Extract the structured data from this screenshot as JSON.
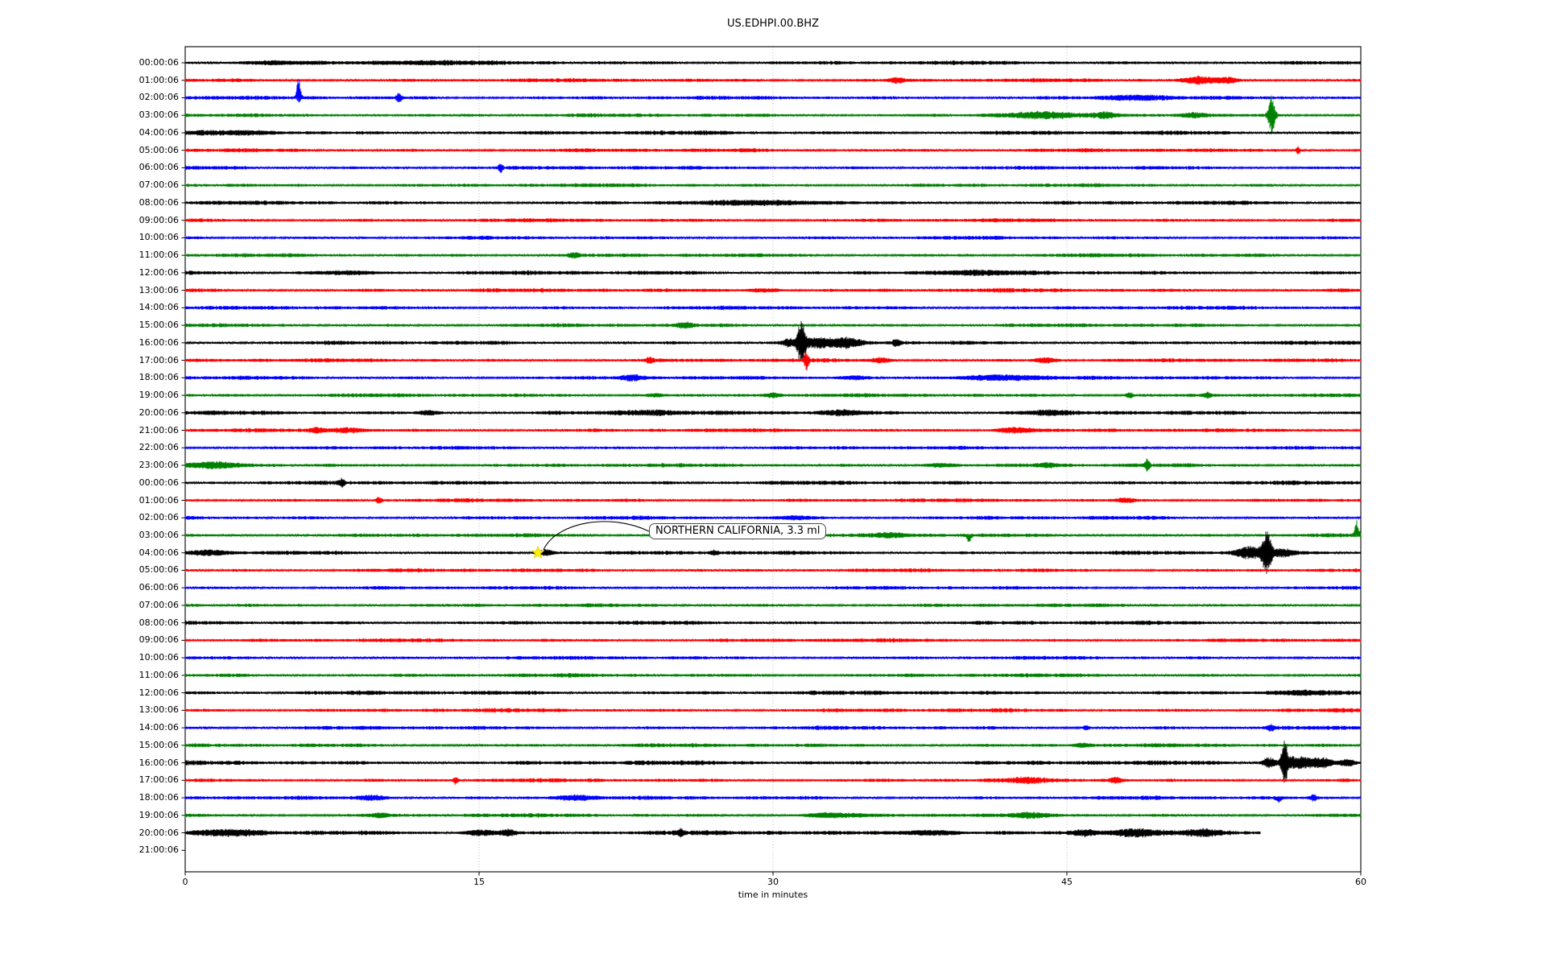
{
  "chart_data": {
    "type": "line",
    "subtype": "helicorder-seismogram-drumplot",
    "title": "US.EDHPI.00.BHZ",
    "xlabel": "time in minutes",
    "xlim": [
      0,
      60
    ],
    "x_ticks": [
      "0",
      "15",
      "30",
      "45",
      "60"
    ],
    "x_tick_values": [
      0,
      15,
      30,
      45,
      60
    ],
    "grid": {
      "vertical_dotted_minutes": [
        15,
        30,
        45
      ],
      "grid_color": "#aaaaaa"
    },
    "trace_color_cycle": [
      "#000000",
      "#ff0000",
      "#0000ff",
      "#008000"
    ],
    "minutes_per_row": 60,
    "annotation": {
      "text": "NORTHERN CALIFORNIA, 3.3 ml",
      "region": "NORTHERN CALIFORNIA",
      "magnitude": "3.3 ml",
      "row_index": 28,
      "row_label": "04:00:06",
      "time_minutes": 18,
      "marker": "star",
      "marker_color": "#ffee00"
    },
    "rows": [
      {
        "label": "00:00:06",
        "color": "#000000",
        "noise_amp": 1.9,
        "events": [
          {
            "t": 4.5,
            "a": 2,
            "w": 2
          },
          {
            "t": 11.5,
            "a": 1.5,
            "w": 3
          }
        ]
      },
      {
        "label": "01:00:06",
        "color": "#ff0000",
        "noise_amp": 1.8,
        "events": [
          {
            "t": 36.3,
            "a": 3,
            "w": 0.4
          },
          {
            "t": 51.8,
            "a": 4,
            "w": 0.9
          },
          {
            "t": 53.2,
            "a": 3.5,
            "w": 0.5
          }
        ]
      },
      {
        "label": "02:00:06",
        "color": "#0000ff",
        "noise_amp": 1.8,
        "events": [
          {
            "t": 5.8,
            "a": 28,
            "w": 0.12,
            "d": 1
          },
          {
            "t": 5.8,
            "a": 5,
            "w": 0.1,
            "d": -1
          },
          {
            "t": 10.9,
            "a": 5,
            "w": 0.15
          },
          {
            "t": 48.5,
            "a": 3,
            "w": 1.5
          }
        ]
      },
      {
        "label": "03:00:06",
        "color": "#008000",
        "noise_amp": 1.8,
        "events": [
          {
            "t": 55.45,
            "a": 24,
            "w": 0.18
          },
          {
            "t": 43.5,
            "a": 3.5,
            "w": 2
          },
          {
            "t": 51.5,
            "a": 3,
            "w": 0.7
          },
          {
            "t": 47,
            "a": 2.5,
            "w": 0.5
          }
        ]
      },
      {
        "label": "04:00:06",
        "color": "#000000",
        "noise_amp": 2.0,
        "events": [
          {
            "t": 3,
            "a": 1.5,
            "w": 2
          }
        ]
      },
      {
        "label": "05:00:06",
        "color": "#ff0000",
        "noise_amp": 1.8,
        "events": [
          {
            "t": 56.8,
            "a": 5,
            "w": 0.12
          }
        ]
      },
      {
        "label": "06:00:06",
        "color": "#0000ff",
        "noise_amp": 1.8,
        "events": [
          {
            "t": 16.1,
            "a": 5,
            "w": 0.12
          }
        ]
      },
      {
        "label": "07:00:06",
        "color": "#008000",
        "noise_amp": 1.8,
        "events": []
      },
      {
        "label": "08:00:06",
        "color": "#000000",
        "noise_amp": 1.9,
        "events": [
          {
            "t": 30,
            "a": 1.5,
            "w": 4
          }
        ]
      },
      {
        "label": "09:00:06",
        "color": "#ff0000",
        "noise_amp": 1.8,
        "events": []
      },
      {
        "label": "10:00:06",
        "color": "#0000ff",
        "noise_amp": 1.7,
        "events": []
      },
      {
        "label": "11:00:06",
        "color": "#008000",
        "noise_amp": 1.8,
        "events": [
          {
            "t": 19.8,
            "a": 2.5,
            "w": 0.3
          }
        ]
      },
      {
        "label": "12:00:06",
        "color": "#000000",
        "noise_amp": 2.0,
        "events": [
          {
            "t": 8,
            "a": 1.5,
            "w": 2
          },
          {
            "t": 40,
            "a": 1.5,
            "w": 3
          }
        ]
      },
      {
        "label": "13:00:06",
        "color": "#ff0000",
        "noise_amp": 1.9,
        "events": [
          {
            "t": 29.5,
            "a": 2,
            "w": 1
          }
        ]
      },
      {
        "label": "14:00:06",
        "color": "#0000ff",
        "noise_amp": 1.8,
        "events": []
      },
      {
        "label": "15:00:06",
        "color": "#008000",
        "noise_amp": 1.8,
        "events": [
          {
            "t": 25.5,
            "a": 2.5,
            "w": 0.4
          }
        ]
      },
      {
        "label": "16:00:06",
        "color": "#000000",
        "noise_amp": 1.9,
        "events": [
          {
            "t": 31.45,
            "a": 27,
            "w": 0.2
          },
          {
            "t": 32.3,
            "a": 6,
            "w": 0.8
          },
          {
            "t": 33.8,
            "a": 5,
            "w": 0.8
          },
          {
            "t": 36.3,
            "a": 4,
            "w": 0.2
          },
          {
            "t": 30.8,
            "a": 4,
            "w": 0.3
          }
        ]
      },
      {
        "label": "17:00:06",
        "color": "#ff0000",
        "noise_amp": 1.8,
        "events": [
          {
            "t": 31.7,
            "a": 12,
            "w": 0.12
          },
          {
            "t": 23.7,
            "a": 3.5,
            "w": 0.2
          },
          {
            "t": 43.9,
            "a": 3,
            "w": 0.6
          },
          {
            "t": 35.5,
            "a": 2.5,
            "w": 0.5
          }
        ]
      },
      {
        "label": "18:00:06",
        "color": "#0000ff",
        "noise_amp": 1.8,
        "events": [
          {
            "t": 22.8,
            "a": 3,
            "w": 0.6
          },
          {
            "t": 41.5,
            "a": 3.5,
            "w": 2
          },
          {
            "t": 34,
            "a": 2.5,
            "w": 0.8
          }
        ]
      },
      {
        "label": "19:00:06",
        "color": "#008000",
        "noise_amp": 1.8,
        "events": [
          {
            "t": 30,
            "a": 3,
            "w": 0.4
          },
          {
            "t": 48.2,
            "a": 3.5,
            "w": 0.2
          },
          {
            "t": 52.2,
            "a": 3,
            "w": 0.2
          },
          {
            "t": 24,
            "a": 2,
            "w": 0.5
          }
        ]
      },
      {
        "label": "20:00:06",
        "color": "#000000",
        "noise_amp": 2.0,
        "events": [
          {
            "t": 12.4,
            "a": 2.5,
            "w": 0.5
          },
          {
            "t": 23.5,
            "a": 2.5,
            "w": 1.5
          },
          {
            "t": 33.5,
            "a": 3,
            "w": 1.5
          },
          {
            "t": 44,
            "a": 2,
            "w": 1
          }
        ]
      },
      {
        "label": "21:00:06",
        "color": "#ff0000",
        "noise_amp": 1.8,
        "events": [
          {
            "t": 8.2,
            "a": 3,
            "w": 0.8
          },
          {
            "t": 42.4,
            "a": 3.5,
            "w": 1
          },
          {
            "t": 6.7,
            "a": 2.5,
            "w": 0.4
          }
        ]
      },
      {
        "label": "22:00:06",
        "color": "#0000ff",
        "noise_amp": 1.7,
        "events": []
      },
      {
        "label": "23:00:06",
        "color": "#008000",
        "noise_amp": 1.8,
        "events": [
          {
            "t": 1.5,
            "a": 3,
            "w": 1.5
          },
          {
            "t": 38.5,
            "a": 2.5,
            "w": 0.8
          },
          {
            "t": 49.1,
            "a": 8,
            "w": 0.12
          },
          {
            "t": 44,
            "a": 2.5,
            "w": 0.5
          }
        ]
      },
      {
        "label": "00:00:06",
        "color": "#000000",
        "noise_amp": 1.9,
        "events": [
          {
            "t": 8,
            "a": 4,
            "w": 0.15
          }
        ]
      },
      {
        "label": "01:00:06",
        "color": "#ff0000",
        "noise_amp": 1.8,
        "events": [
          {
            "t": 9.9,
            "a": 4,
            "w": 0.15
          },
          {
            "t": 48,
            "a": 2.5,
            "w": 0.5
          }
        ]
      },
      {
        "label": "02:00:06",
        "color": "#0000ff",
        "noise_amp": 1.8,
        "events": [
          {
            "t": 31,
            "a": 2,
            "w": 1
          }
        ]
      },
      {
        "label": "03:00:06",
        "color": "#008000",
        "noise_amp": 1.8,
        "events": [
          {
            "t": 29,
            "a": 5,
            "w": 0.4,
            "d": -1
          },
          {
            "t": 30.1,
            "a": 4,
            "w": 0.2,
            "d": -1
          },
          {
            "t": 31.5,
            "a": 3,
            "w": 0.3
          },
          {
            "t": 40,
            "a": 8,
            "w": 0.12,
            "d": -1
          },
          {
            "t": 59.8,
            "a": 18,
            "w": 0.12,
            "d": 1
          },
          {
            "t": 36,
            "a": 2.5,
            "w": 0.8
          }
        ]
      },
      {
        "label": "04:00:06",
        "color": "#000000",
        "noise_amp": 1.9,
        "events": [
          {
            "t": 1.2,
            "a": 2.5,
            "w": 1
          },
          {
            "t": 18.4,
            "a": 4,
            "w": 0.4
          },
          {
            "t": 27,
            "a": 2.5,
            "w": 0.2
          },
          {
            "t": 55.2,
            "a": 26,
            "w": 0.25
          },
          {
            "t": 54.3,
            "a": 7,
            "w": 0.7
          },
          {
            "t": 56,
            "a": 5,
            "w": 0.5
          }
        ]
      },
      {
        "label": "05:00:06",
        "color": "#ff0000",
        "noise_amp": 1.8,
        "events": []
      },
      {
        "label": "06:00:06",
        "color": "#0000ff",
        "noise_amp": 1.7,
        "events": []
      },
      {
        "label": "07:00:06",
        "color": "#008000",
        "noise_amp": 1.7,
        "events": []
      },
      {
        "label": "08:00:06",
        "color": "#000000",
        "noise_amp": 1.9,
        "events": []
      },
      {
        "label": "09:00:06",
        "color": "#ff0000",
        "noise_amp": 1.8,
        "events": []
      },
      {
        "label": "10:00:06",
        "color": "#0000ff",
        "noise_amp": 1.7,
        "events": []
      },
      {
        "label": "11:00:06",
        "color": "#008000",
        "noise_amp": 1.8,
        "events": []
      },
      {
        "label": "12:00:06",
        "color": "#000000",
        "noise_amp": 2.0,
        "events": [
          {
            "t": 57,
            "a": 2,
            "w": 1
          }
        ]
      },
      {
        "label": "13:00:06",
        "color": "#ff0000",
        "noise_amp": 1.9,
        "events": []
      },
      {
        "label": "14:00:06",
        "color": "#0000ff",
        "noise_amp": 1.8,
        "events": [
          {
            "t": 55.4,
            "a": 3.5,
            "w": 0.2
          },
          {
            "t": 46,
            "a": 2.5,
            "w": 0.2
          }
        ]
      },
      {
        "label": "15:00:06",
        "color": "#008000",
        "noise_amp": 1.8,
        "events": [
          {
            "t": 45.8,
            "a": 2.5,
            "w": 0.4
          }
        ]
      },
      {
        "label": "16:00:06",
        "color": "#000000",
        "noise_amp": 2.1,
        "events": [
          {
            "t": 56.1,
            "a": 28,
            "w": 0.15
          },
          {
            "t": 56.7,
            "a": 8,
            "w": 0.8
          },
          {
            "t": 58,
            "a": 5,
            "w": 0.6
          },
          {
            "t": 55.3,
            "a": 6,
            "w": 0.3
          },
          {
            "t": 59.3,
            "a": 4,
            "w": 0.4
          }
        ]
      },
      {
        "label": "17:00:06",
        "color": "#ff0000",
        "noise_amp": 1.8,
        "events": [
          {
            "t": 13.8,
            "a": 5,
            "w": 0.12
          },
          {
            "t": 43,
            "a": 3,
            "w": 0.8
          },
          {
            "t": 47.5,
            "a": 3,
            "w": 0.4
          }
        ]
      },
      {
        "label": "18:00:06",
        "color": "#0000ff",
        "noise_amp": 1.8,
        "events": [
          {
            "t": 9.6,
            "a": 3,
            "w": 0.8
          },
          {
            "t": 19.8,
            "a": 3,
            "w": 1.2
          },
          {
            "t": 55.8,
            "a": 5,
            "w": 0.15,
            "d": -1
          },
          {
            "t": 57.6,
            "a": 4,
            "w": 0.15
          }
        ]
      },
      {
        "label": "19:00:06",
        "color": "#008000",
        "noise_amp": 1.8,
        "events": [
          {
            "t": 33,
            "a": 2.5,
            "w": 1.5
          },
          {
            "t": 43,
            "a": 2.5,
            "w": 0.8
          },
          {
            "t": 10,
            "a": 2.5,
            "w": 0.5
          }
        ]
      },
      {
        "label": "20:00:06",
        "color": "#000000",
        "noise_amp": 2.2,
        "end": 54.9,
        "events": [
          {
            "t": 2.5,
            "a": 3,
            "w": 1.5
          },
          {
            "t": 15,
            "a": 3,
            "w": 0.8
          },
          {
            "t": 16.5,
            "a": 4,
            "w": 0.4
          },
          {
            "t": 25.3,
            "a": 3.5,
            "w": 0.2
          },
          {
            "t": 38,
            "a": 3,
            "w": 1.5
          },
          {
            "t": 45.9,
            "a": 4,
            "w": 0.7
          },
          {
            "t": 48.5,
            "a": 4.5,
            "w": 1
          },
          {
            "t": 52,
            "a": 3.5,
            "w": 0.8
          }
        ]
      },
      {
        "label": "21:00:06",
        "color": "#ff0000",
        "noise_amp": 0,
        "trace": false,
        "events": []
      }
    ]
  }
}
